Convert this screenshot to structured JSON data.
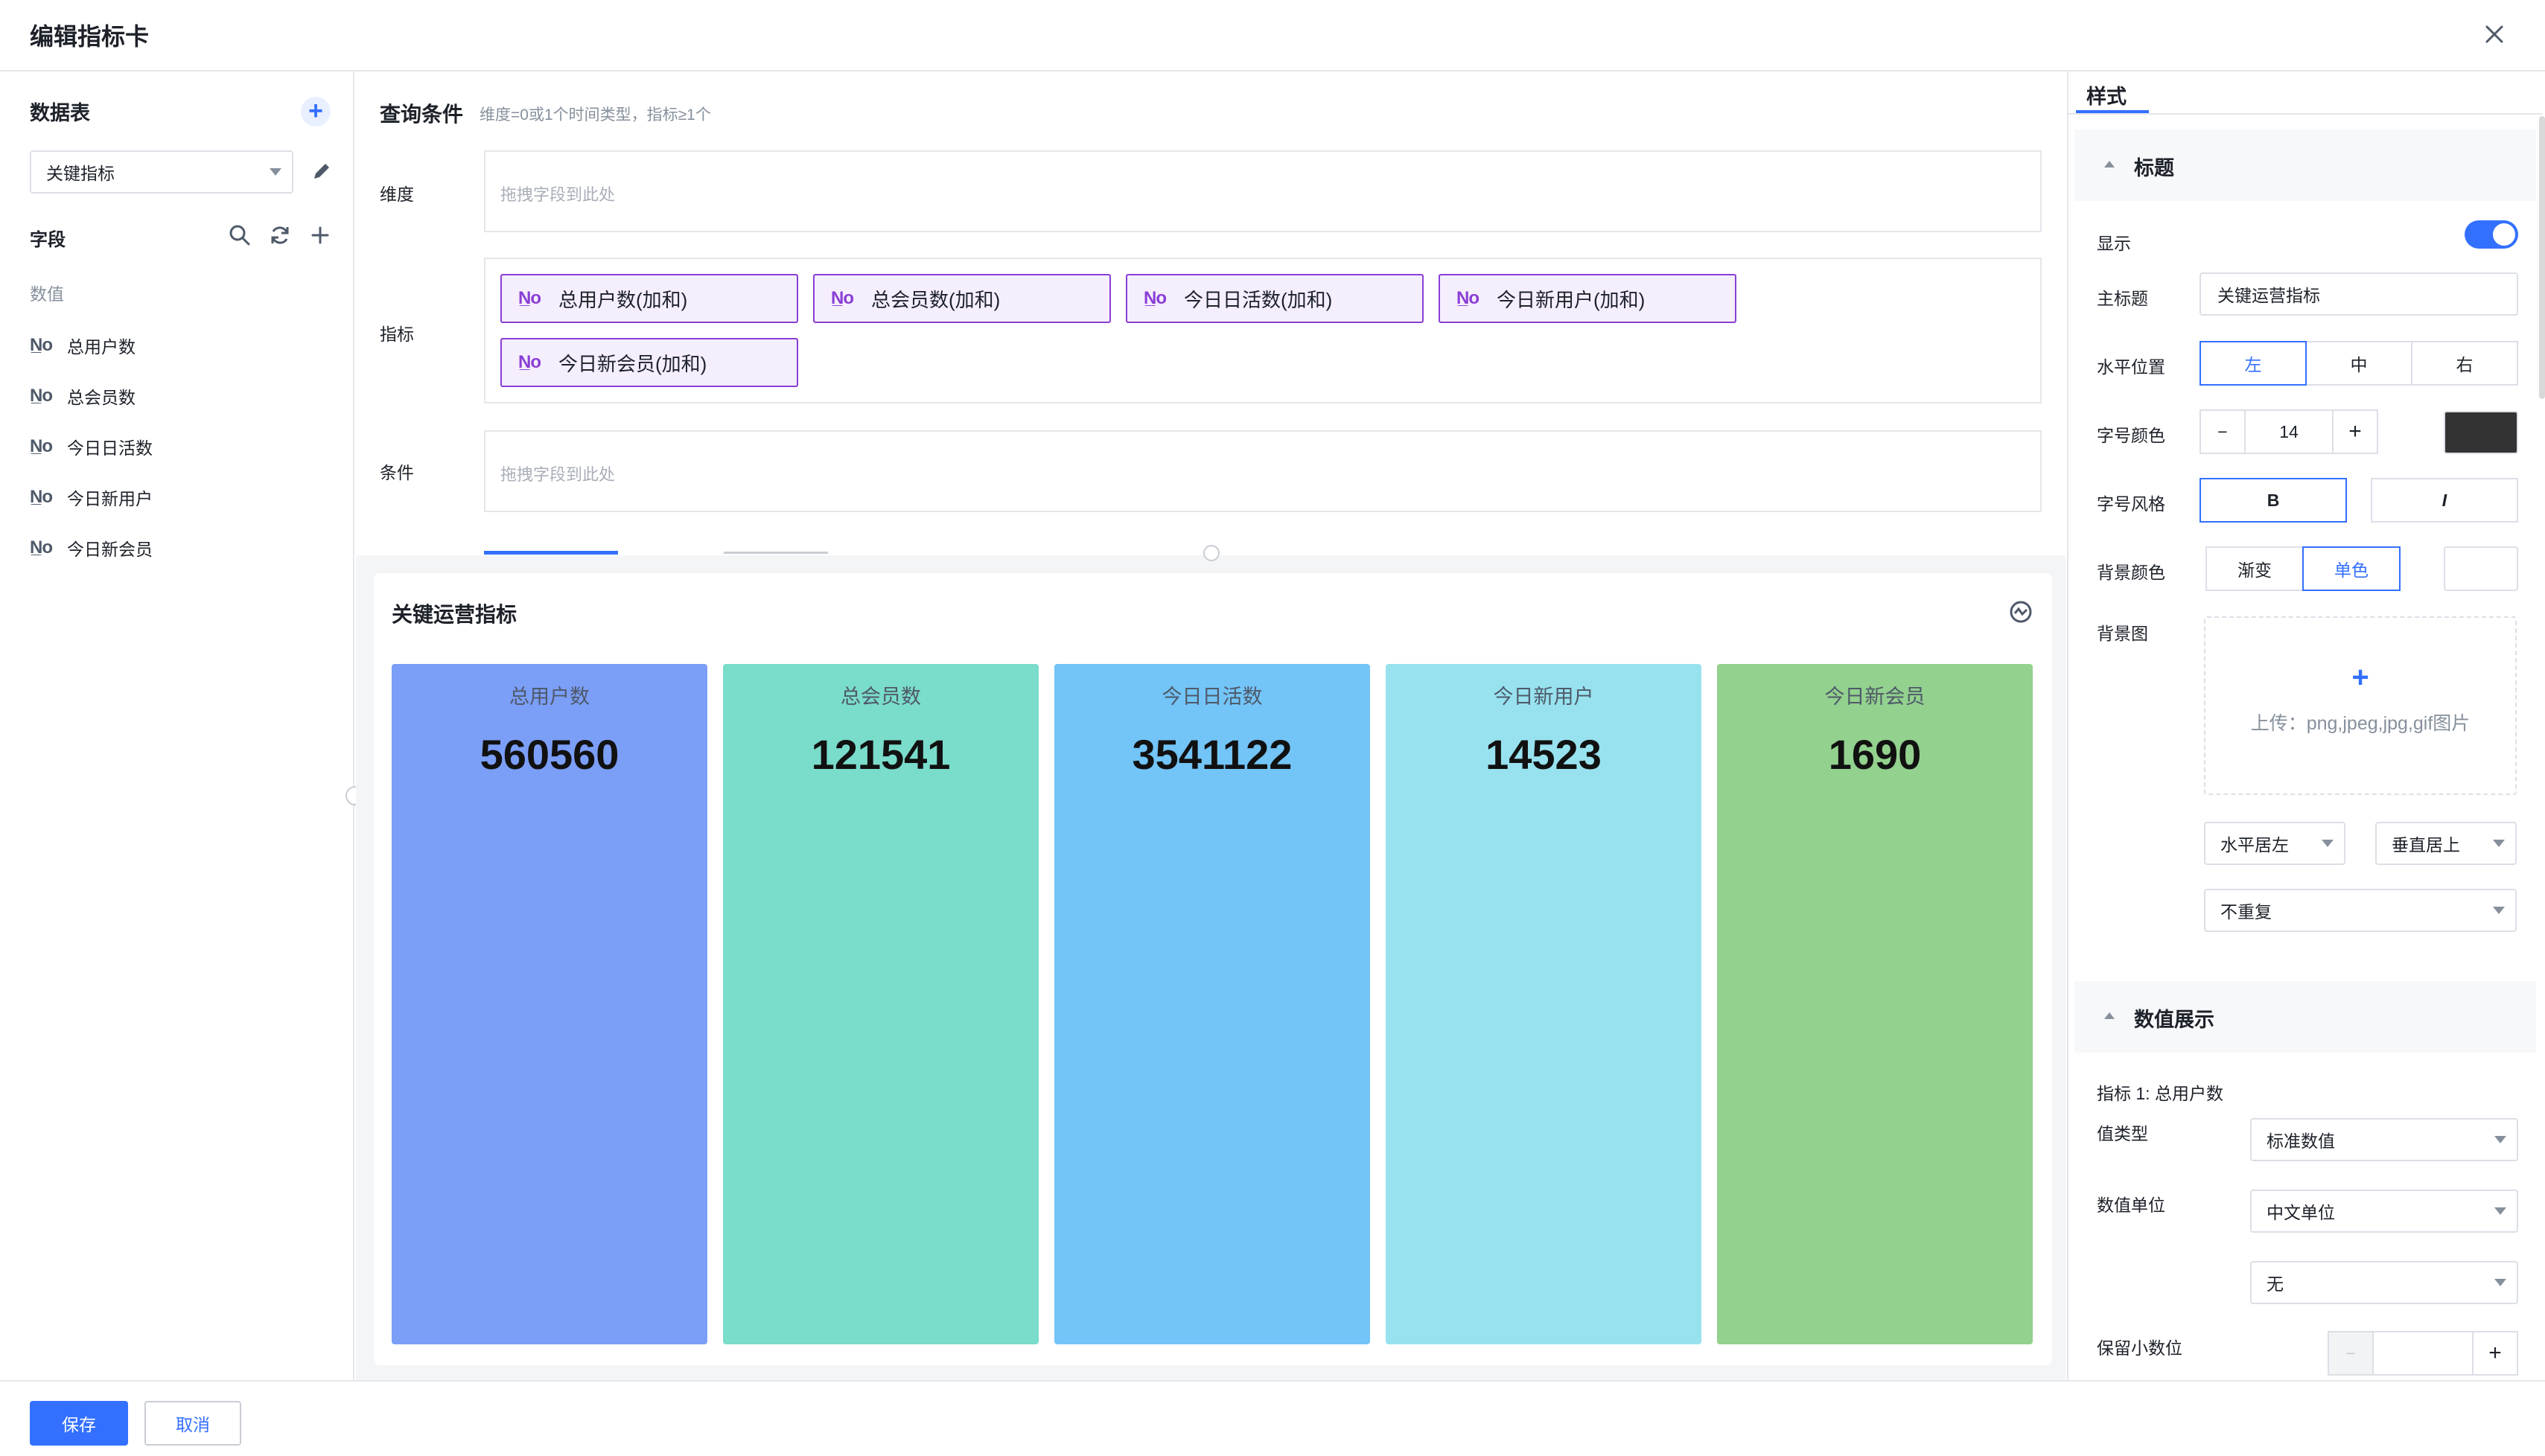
{
  "dialog": {
    "title": "编辑指标卡"
  },
  "left": {
    "table_title": "数据表",
    "table_select": "关键指标",
    "fields_title": "字段",
    "group_label": "数值",
    "fields": [
      "总用户数",
      "总会员数",
      "今日日活数",
      "今日新用户",
      "今日新会员"
    ],
    "field_icon_text": "N̲o"
  },
  "query": {
    "title": "查询条件",
    "hint": "维度=0或1个时间类型，指标≥1个",
    "dimension_label": "维度",
    "dimension_placeholder": "拖拽字段到此处",
    "metric_label": "指标",
    "metrics": [
      "总用户数(加和)",
      "总会员数(加和)",
      "今日日活数(加和)",
      "今日新用户(加和)",
      "今日新会员(加和)"
    ],
    "condition_label": "条件",
    "condition_placeholder": "拖拽字段到此处"
  },
  "preview": {
    "title": "关键运营指标",
    "cards": [
      {
        "label": "总用户数",
        "value": "560560",
        "color": "#7b9ef7"
      },
      {
        "label": "总会员数",
        "value": "121541",
        "color": "#7adccb"
      },
      {
        "label": "今日日活数",
        "value": "3541122",
        "color": "#73c4f7"
      },
      {
        "label": "今日新用户",
        "value": "14523",
        "color": "#97e2ee"
      },
      {
        "label": "今日新会员",
        "value": "1690",
        "color": "#93d18e"
      }
    ]
  },
  "style_panel": {
    "tab": "样式",
    "title_section": "标题",
    "show_label": "显示",
    "show_enabled": true,
    "main_title_label": "主标题",
    "main_title_value": "关键运营指标",
    "h_position_label": "水平位置",
    "h_positions": [
      "左",
      "中",
      "右"
    ],
    "h_position_selected": "左",
    "font_label": "字号颜色",
    "font_size": "14",
    "font_color": "#333333",
    "font_style_label": "字号风格",
    "font_styles": [
      "B",
      "I"
    ],
    "bg_color_label": "背景颜色",
    "bg_modes": [
      "渐变",
      "单色"
    ],
    "bg_mode_selected": "单色",
    "bg_image_label": "背景图",
    "upload_text": "上传：png,jpeg,jpg,gif图片",
    "h_align": "水平居左",
    "v_align": "垂直居上",
    "repeat": "不重复",
    "value_section": "数值展示",
    "metric_caption": "指标 1: 总用户数",
    "value_type_label": "值类型",
    "value_type": "标准数值",
    "value_unit_label": "数值单位",
    "value_unit": "中文单位",
    "value_unit_sub": "无",
    "decimal_label": "保留小数位"
  },
  "footer": {
    "save": "保存",
    "cancel": "取消"
  }
}
